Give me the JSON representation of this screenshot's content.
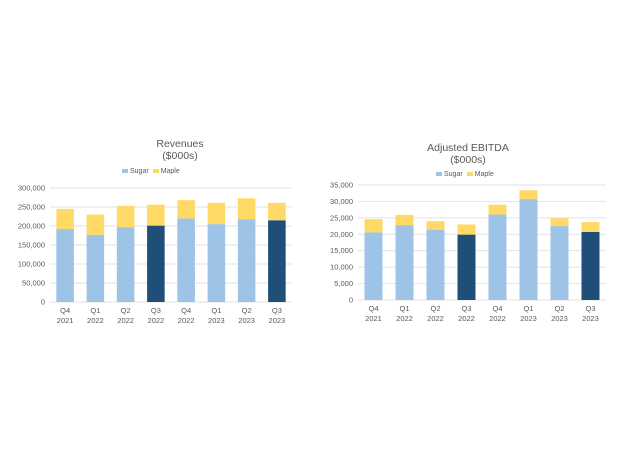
{
  "colors": {
    "sugar": "#9dc3e6",
    "maple": "#ffd966",
    "highlight": "#1f4e79",
    "grid": "#d9d9d9",
    "text": "#595959"
  },
  "chart_data": [
    {
      "type": "bar",
      "stacked": true,
      "title": "Revenues",
      "subtitle": "($000s)",
      "categories": [
        [
          "Q4",
          "2021"
        ],
        [
          "Q1",
          "2022"
        ],
        [
          "Q2",
          "2022"
        ],
        [
          "Q3",
          "2022"
        ],
        [
          "Q4",
          "2022"
        ],
        [
          "Q1",
          "2023"
        ],
        [
          "Q2",
          "2023"
        ],
        [
          "Q3",
          "2023"
        ]
      ],
      "series": [
        {
          "name": "Sugar",
          "values": [
            192000,
            177000,
            197000,
            201000,
            220000,
            205000,
            218000,
            215000
          ]
        },
        {
          "name": "Maple",
          "values": [
            53000,
            53000,
            56000,
            55000,
            48000,
            56000,
            55000,
            46000
          ]
        }
      ],
      "highlight_indices": [
        3,
        7
      ],
      "yticks": [
        "0",
        "50,000",
        "100,000",
        "150,000",
        "200,000",
        "250,000",
        "300,000"
      ],
      "ylim": [
        0,
        300000
      ],
      "legend_position": "top",
      "grid": true
    },
    {
      "type": "bar",
      "stacked": true,
      "title": "Adjusted EBITDA",
      "subtitle": "($000s)",
      "categories": [
        [
          "Q4",
          "2021"
        ],
        [
          "Q1",
          "2022"
        ],
        [
          "Q2",
          "2022"
        ],
        [
          "Q3",
          "2022"
        ],
        [
          "Q4",
          "2022"
        ],
        [
          "Q1",
          "2023"
        ],
        [
          "Q2",
          "2023"
        ],
        [
          "Q3",
          "2023"
        ]
      ],
      "series": [
        {
          "name": "Sugar",
          "values": [
            20600,
            22800,
            21400,
            19900,
            26000,
            30700,
            22500,
            20700
          ]
        },
        {
          "name": "Maple",
          "values": [
            4000,
            3100,
            2600,
            3100,
            3000,
            2700,
            2400,
            3000
          ]
        }
      ],
      "highlight_indices": [
        3,
        7
      ],
      "yticks": [
        "0",
        "5,000",
        "10,000",
        "15,000",
        "20,000",
        "25,000",
        "30,000",
        "35,000"
      ],
      "ylim": [
        0,
        35000
      ],
      "legend_position": "top",
      "grid": true
    }
  ]
}
